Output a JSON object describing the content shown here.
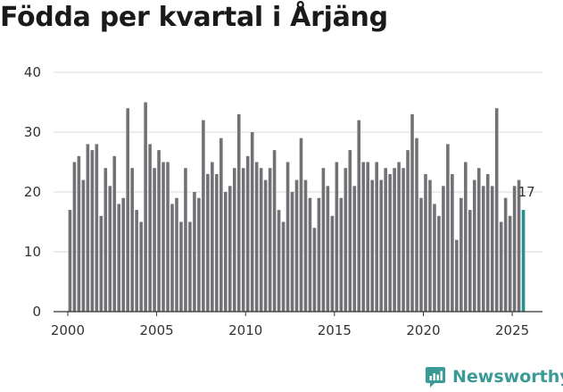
{
  "chart_data": {
    "type": "bar",
    "title": "Födda per kvartal i Årjäng",
    "xlabel": "",
    "ylabel": "",
    "ylim": [
      0,
      40
    ],
    "xlim": [
      1999.2,
      2026.7
    ],
    "yticks": [
      0,
      10,
      20,
      30,
      40
    ],
    "xticks": [
      2000,
      2005,
      2010,
      2015,
      2020,
      2025
    ],
    "start_year": 2000,
    "start_quarter": 1,
    "values": [
      17,
      25,
      26,
      22,
      28,
      27,
      28,
      16,
      24,
      21,
      26,
      18,
      19,
      34,
      24,
      17,
      15,
      35,
      28,
      24,
      27,
      25,
      25,
      18,
      19,
      15,
      24,
      15,
      20,
      19,
      32,
      23,
      25,
      23,
      29,
      20,
      21,
      24,
      33,
      24,
      26,
      30,
      25,
      24,
      22,
      24,
      27,
      17,
      15,
      25,
      20,
      22,
      29,
      22,
      19,
      14,
      19,
      24,
      21,
      16,
      25,
      19,
      24,
      27,
      21,
      32,
      25,
      25,
      22,
      25,
      22,
      24,
      23,
      24,
      25,
      24,
      27,
      33,
      29,
      19,
      23,
      22,
      18,
      16,
      21,
      28,
      23,
      12,
      19,
      25,
      17,
      22,
      24,
      21,
      23,
      21,
      34,
      15,
      19,
      16,
      21,
      22,
      17
    ],
    "last_value_label": "17",
    "bar_color": "#727176",
    "highlight_color": "#26928d"
  },
  "brand": {
    "name": "Newsworthy",
    "icon": "newsworthy-logo-icon",
    "color": "#3a9a96"
  }
}
